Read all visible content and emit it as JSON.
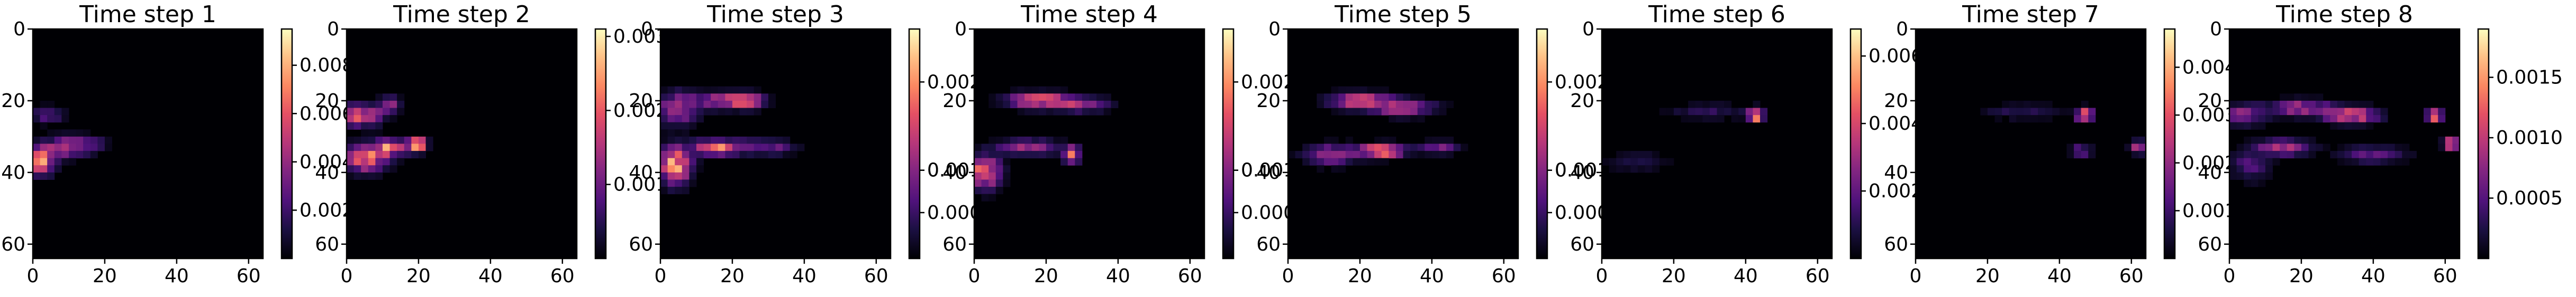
{
  "chart_data": [
    {
      "type": "heatmap",
      "title": "Time step 1",
      "xlim": [
        0,
        64
      ],
      "ylim": [
        0,
        64
      ],
      "xticks": [
        "0",
        "20",
        "40",
        "60"
      ],
      "yticks": [
        "0",
        "20",
        "40",
        "60"
      ],
      "colorbar_max": 0.0095,
      "colorbar_ticks": [
        "0.002",
        "0.004",
        "0.006",
        "0.008"
      ],
      "colormap": "magma",
      "hotspots": [
        {
          "x": 2,
          "y": 37,
          "intensity": 1.0,
          "sx": 2.5,
          "sy": 2.5
        },
        {
          "x": 9,
          "y": 33,
          "intensity": 0.6,
          "sx": 4,
          "sy": 2
        },
        {
          "x": 4,
          "y": 24,
          "intensity": 0.35,
          "sx": 3,
          "sy": 1.5
        },
        {
          "x": 16,
          "y": 32,
          "intensity": 0.3,
          "sx": 3,
          "sy": 1.5
        }
      ]
    },
    {
      "type": "heatmap",
      "title": "Time step 2",
      "xlim": [
        0,
        64
      ],
      "ylim": [
        0,
        64
      ],
      "xticks": [
        "0",
        "20",
        "40",
        "60"
      ],
      "yticks": [
        "0",
        "20",
        "40",
        "60"
      ],
      "colorbar_max": 0.0031,
      "colorbar_ticks": [
        "0.001",
        "0.002",
        "0.003"
      ],
      "colormap": "magma",
      "hotspots": [
        {
          "x": 4,
          "y": 24,
          "intensity": 0.8,
          "sx": 4,
          "sy": 2
        },
        {
          "x": 12,
          "y": 21,
          "intensity": 0.5,
          "sx": 2,
          "sy": 1.5
        },
        {
          "x": 5,
          "y": 36,
          "intensity": 0.9,
          "sx": 4,
          "sy": 2.5
        },
        {
          "x": 13,
          "y": 33,
          "intensity": 0.85,
          "sx": 4,
          "sy": 1.5
        },
        {
          "x": 20,
          "y": 32,
          "intensity": 1.0,
          "sx": 1.5,
          "sy": 1.2
        }
      ]
    },
    {
      "type": "heatmap",
      "title": "Time step 3",
      "xlim": [
        0,
        64
      ],
      "ylim": [
        0,
        64
      ],
      "xticks": [
        "0",
        "20",
        "40",
        "60"
      ],
      "yticks": [
        "0",
        "20",
        "40",
        "60"
      ],
      "colorbar_max": 0.0026,
      "colorbar_ticks": [
        "0.000",
        "0.001",
        "0.001",
        "0.002"
      ],
      "colormap": "magma",
      "hotspots": [
        {
          "x": 5,
          "y": 22,
          "intensity": 0.6,
          "sx": 4,
          "sy": 3
        },
        {
          "x": 18,
          "y": 20,
          "intensity": 0.7,
          "sx": 5,
          "sy": 1.5
        },
        {
          "x": 25,
          "y": 20,
          "intensity": 0.5,
          "sx": 3,
          "sy": 1.5
        },
        {
          "x": 4,
          "y": 38,
          "intensity": 1.0,
          "sx": 3,
          "sy": 3.5
        },
        {
          "x": 16,
          "y": 33,
          "intensity": 0.8,
          "sx": 5,
          "sy": 1.5
        },
        {
          "x": 30,
          "y": 33,
          "intensity": 0.4,
          "sx": 5,
          "sy": 1.5
        }
      ]
    },
    {
      "type": "heatmap",
      "title": "Time step 4",
      "xlim": [
        0,
        64
      ],
      "ylim": [
        0,
        64
      ],
      "xticks": [
        "0",
        "20",
        "40",
        "60"
      ],
      "yticks": [
        "0",
        "20",
        "40",
        "60"
      ],
      "colorbar_max": 0.0026,
      "colorbar_ticks": [
        "0.000",
        "0.001",
        "0.001",
        "0.002"
      ],
      "colormap": "magma",
      "hotspots": [
        {
          "x": 18,
          "y": 20,
          "intensity": 0.8,
          "sx": 6,
          "sy": 1.5
        },
        {
          "x": 30,
          "y": 21,
          "intensity": 0.5,
          "sx": 5,
          "sy": 1.5
        },
        {
          "x": 3,
          "y": 40,
          "intensity": 0.9,
          "sx": 3,
          "sy": 3
        },
        {
          "x": 27,
          "y": 35,
          "intensity": 1.0,
          "sx": 1.5,
          "sy": 1.5
        },
        {
          "x": 15,
          "y": 33,
          "intensity": 0.5,
          "sx": 6,
          "sy": 1.5
        }
      ]
    },
    {
      "type": "heatmap",
      "title": "Time step 5",
      "xlim": [
        0,
        64
      ],
      "ylim": [
        0,
        64
      ],
      "xticks": [
        "0",
        "20",
        "40",
        "60"
      ],
      "yticks": [
        "0",
        "20",
        "40",
        "60"
      ],
      "colorbar_max": 0.0026,
      "colorbar_ticks": [
        "0.000",
        "0.001",
        "0.001",
        "0.002"
      ],
      "colormap": "magma",
      "hotspots": [
        {
          "x": 20,
          "y": 20,
          "intensity": 0.7,
          "sx": 6,
          "sy": 1.5
        },
        {
          "x": 32,
          "y": 22,
          "intensity": 0.6,
          "sx": 6,
          "sy": 1.5
        },
        {
          "x": 26,
          "y": 34,
          "intensity": 1.0,
          "sx": 4,
          "sy": 1.3
        },
        {
          "x": 12,
          "y": 35,
          "intensity": 0.5,
          "sx": 5,
          "sy": 2
        },
        {
          "x": 42,
          "y": 33,
          "intensity": 0.4,
          "sx": 4,
          "sy": 1.2
        }
      ]
    },
    {
      "type": "heatmap",
      "title": "Time step 6",
      "xlim": [
        0,
        64
      ],
      "ylim": [
        0,
        64
      ],
      "xticks": [
        "0",
        "20",
        "40",
        "60"
      ],
      "yticks": [
        "0",
        "20",
        "40",
        "60"
      ],
      "colorbar_max": 0.0068,
      "colorbar_ticks": [
        "0.002",
        "0.004",
        "0.006"
      ],
      "colormap": "magma",
      "hotspots": [
        {
          "x": 43,
          "y": 24,
          "intensity": 1.0,
          "sx": 1.5,
          "sy": 1.2
        },
        {
          "x": 30,
          "y": 23,
          "intensity": 0.2,
          "sx": 8,
          "sy": 1.5
        },
        {
          "x": 10,
          "y": 37,
          "intensity": 0.15,
          "sx": 6,
          "sy": 2
        }
      ]
    },
    {
      "type": "heatmap",
      "title": "Time step 7",
      "xlim": [
        0,
        64
      ],
      "ylim": [
        0,
        64
      ],
      "xticks": [
        "0",
        "20",
        "40",
        "60"
      ],
      "yticks": [
        "0",
        "20",
        "40",
        "60"
      ],
      "colorbar_max": 0.0048,
      "colorbar_ticks": [
        "0.001",
        "0.002",
        "0.003",
        "0.004"
      ],
      "colormap": "magma",
      "hotspots": [
        {
          "x": 47,
          "y": 24,
          "intensity": 1.0,
          "sx": 1.5,
          "sy": 1.2
        },
        {
          "x": 62,
          "y": 33,
          "intensity": 0.6,
          "sx": 1.5,
          "sy": 1.2
        },
        {
          "x": 46,
          "y": 34,
          "intensity": 0.4,
          "sx": 2,
          "sy": 1.2
        },
        {
          "x": 30,
          "y": 23,
          "intensity": 0.2,
          "sx": 8,
          "sy": 1.5
        }
      ]
    },
    {
      "type": "heatmap",
      "title": "Time step 8",
      "xlim": [
        0,
        64
      ],
      "ylim": [
        0,
        64
      ],
      "xticks": [
        "0",
        "20",
        "40",
        "60"
      ],
      "yticks": [
        "0",
        "20",
        "40",
        "60"
      ],
      "colorbar_max": 0.0019,
      "colorbar_ticks": [
        "0.0005",
        "0.0010",
        "0.0015"
      ],
      "colormap": "magma",
      "hotspots": [
        {
          "x": 4,
          "y": 24,
          "intensity": 0.5,
          "sx": 4,
          "sy": 2
        },
        {
          "x": 20,
          "y": 22,
          "intensity": 0.6,
          "sx": 6,
          "sy": 1.5
        },
        {
          "x": 34,
          "y": 24,
          "intensity": 0.8,
          "sx": 5,
          "sy": 1.5
        },
        {
          "x": 57,
          "y": 24,
          "intensity": 1.0,
          "sx": 1.5,
          "sy": 1.2
        },
        {
          "x": 15,
          "y": 33,
          "intensity": 0.6,
          "sx": 5,
          "sy": 1.5
        },
        {
          "x": 40,
          "y": 35,
          "intensity": 0.4,
          "sx": 6,
          "sy": 1.5
        },
        {
          "x": 62,
          "y": 32,
          "intensity": 0.9,
          "sx": 1.5,
          "sy": 1.2
        },
        {
          "x": 6,
          "y": 38,
          "intensity": 0.3,
          "sx": 4,
          "sy": 3
        }
      ]
    }
  ]
}
